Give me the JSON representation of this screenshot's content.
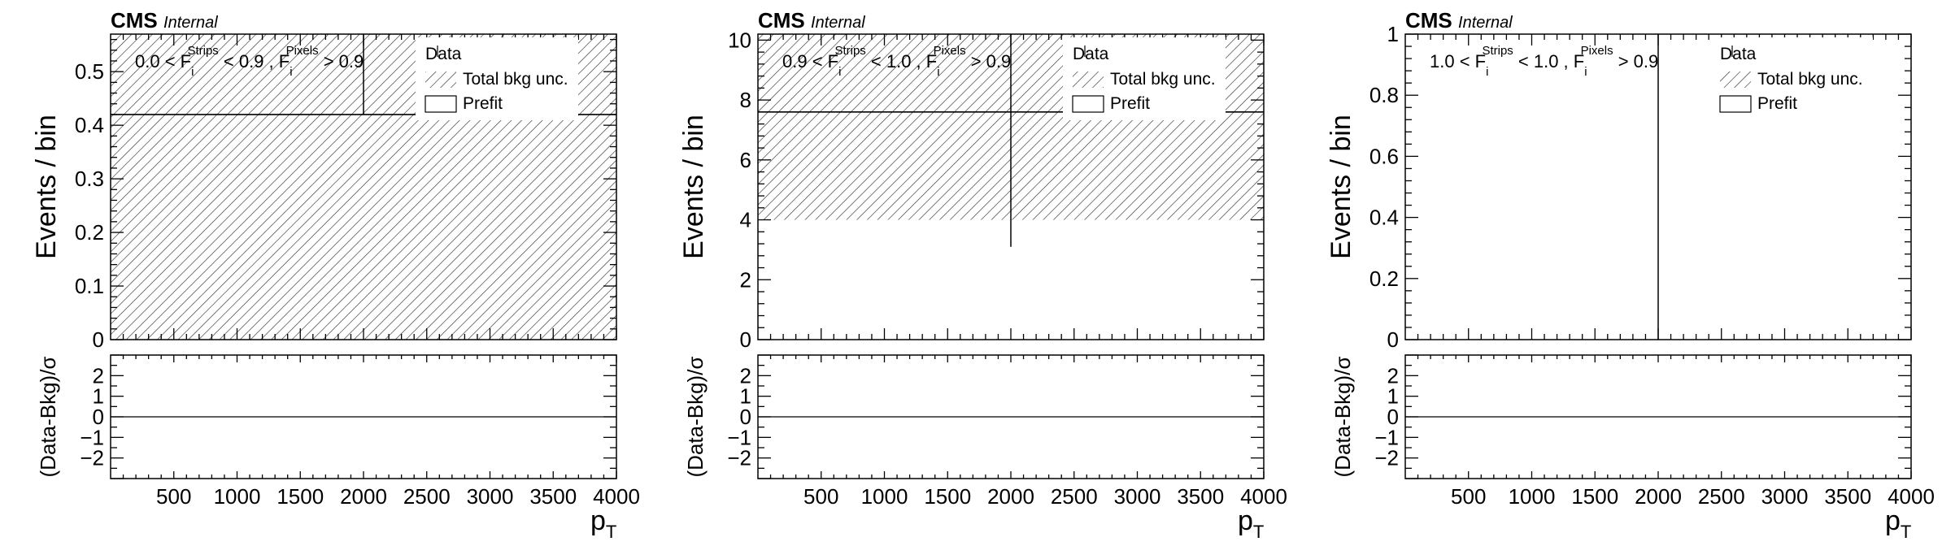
{
  "chart_data": [
    {
      "type": "bar",
      "experiment": "CMS",
      "status": "Internal",
      "region_label": {
        "lo": "0.0",
        "hi": "0.9",
        "pix": "0.9",
        "var1": "F",
        "sub1": "i",
        "sup1": "Strips",
        "var2": "F",
        "sub2": "i",
        "sup2": "Pixels"
      },
      "legend": {
        "data": "Data",
        "unc": "Total bkg unc.",
        "prefit": "Prefit"
      },
      "ylabel": "Events / bin",
      "ratio_ylabel": "(Data-Bkg)/σ",
      "xlabel": "p",
      "xlabel_sub": "T",
      "xlim": [
        0,
        4000
      ],
      "ylim": [
        0,
        0.57
      ],
      "yticks": [
        0,
        0.1,
        0.2,
        0.3,
        0.4,
        0.5
      ],
      "yticklabels": [
        "0",
        "0.1",
        "0.2",
        "0.3",
        "0.4",
        "0.5"
      ],
      "ratio_ylim": [
        -3,
        3
      ],
      "ratio_yticks": [
        -2,
        -1,
        0,
        1,
        2
      ],
      "ratio_yticklabels": [
        "−2",
        "−1",
        "0",
        "1",
        "2"
      ],
      "xticks": [
        500,
        1000,
        1500,
        2000,
        2500,
        3000,
        3500,
        4000
      ],
      "xticklabels": [
        "500",
        "1000",
        "1500",
        "2000",
        "2500",
        "3000",
        "3500",
        "4000"
      ],
      "bins": [
        0,
        4000
      ],
      "prefit": [
        0.42
      ],
      "unc_band_low": [
        0
      ],
      "unc_band_high": [
        0.57
      ],
      "data_marker": {
        "x": 2000,
        "y": 0.42,
        "y_err_low": 0.42,
        "y_err_high": 0.57
      },
      "grid": false,
      "legend_position": "top-right"
    },
    {
      "type": "bar",
      "experiment": "CMS",
      "status": "Internal",
      "region_label": {
        "lo": "0.9",
        "hi": "1.0",
        "pix": "0.9",
        "var1": "F",
        "sub1": "i",
        "sup1": "Strips",
        "var2": "F",
        "sub2": "i",
        "sup2": "Pixels"
      },
      "legend": {
        "data": "Data",
        "unc": "Total bkg unc.",
        "prefit": "Prefit"
      },
      "ylabel": "Events / bin",
      "ratio_ylabel": "(Data-Bkg)/σ",
      "xlabel": "p",
      "xlabel_sub": "T",
      "xlim": [
        0,
        4000
      ],
      "ylim": [
        0,
        10.2
      ],
      "yticks": [
        0,
        2,
        4,
        6,
        8,
        10
      ],
      "yticklabels": [
        "0",
        "2",
        "4",
        "6",
        "8",
        "10"
      ],
      "ratio_ylim": [
        -3,
        3
      ],
      "ratio_yticks": [
        -2,
        -1,
        0,
        1,
        2
      ],
      "ratio_yticklabels": [
        "−2",
        "−1",
        "0",
        "1",
        "2"
      ],
      "xticks": [
        500,
        1000,
        1500,
        2000,
        2500,
        3000,
        3500,
        4000
      ],
      "xticklabels": [
        "500",
        "1000",
        "1500",
        "2000",
        "2500",
        "3000",
        "3500",
        "4000"
      ],
      "bins": [
        0,
        4000
      ],
      "prefit": [
        7.6
      ],
      "unc_band_low": [
        4.0
      ],
      "unc_band_high": [
        10.2
      ],
      "data_marker": {
        "x": 2000,
        "y": 7.6,
        "y_err_low": 3.1,
        "y_err_high": 10.2
      },
      "grid": false,
      "legend_position": "top-right"
    },
    {
      "type": "bar",
      "experiment": "CMS",
      "status": "Internal",
      "region_label": {
        "lo": "1.0",
        "hi": "1.0",
        "pix": "0.9",
        "var1": "F",
        "sub1": "i",
        "sup1": "Strips",
        "var2": "F",
        "sub2": "i",
        "sup2": "Pixels"
      },
      "legend": {
        "data": "Data",
        "unc": "Total bkg unc.",
        "prefit": "Prefit"
      },
      "ylabel": "Events / bin",
      "ratio_ylabel": "(Data-Bkg)/σ",
      "xlabel": "p",
      "xlabel_sub": "T",
      "xlim": [
        0,
        4000
      ],
      "ylim": [
        0,
        1.0
      ],
      "yticks": [
        0,
        0.2,
        0.4,
        0.6,
        0.8,
        1.0
      ],
      "yticklabels": [
        "0",
        "0.2",
        "0.4",
        "0.6",
        "0.8",
        "1"
      ],
      "ratio_ylim": [
        -3,
        3
      ],
      "ratio_yticks": [
        -2,
        -1,
        0,
        1,
        2
      ],
      "ratio_yticklabels": [
        "−2",
        "−1",
        "0",
        "1",
        "2"
      ],
      "xticks": [
        500,
        1000,
        1500,
        2000,
        2500,
        3000,
        3500,
        4000
      ],
      "xticklabels": [
        "500",
        "1000",
        "1500",
        "2000",
        "2500",
        "3000",
        "3500",
        "4000"
      ],
      "bins": [
        0,
        4000
      ],
      "prefit": [
        0
      ],
      "unc_band_low": [
        0
      ],
      "unc_band_high": [
        0
      ],
      "data_marker": {
        "x": 2000,
        "y": 0,
        "y_err_low": 0,
        "y_err_high": 1.0
      },
      "grid": false,
      "legend_position": "top-right"
    }
  ]
}
